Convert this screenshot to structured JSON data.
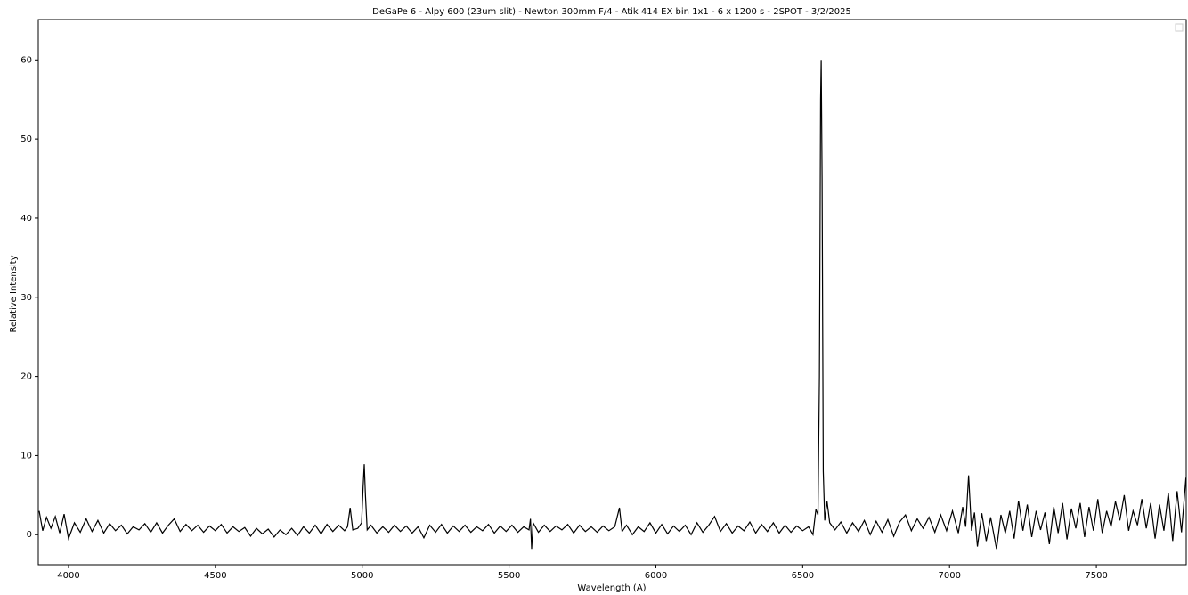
{
  "chart_data": {
    "type": "line",
    "title": "DeGaPe 6 - Alpy 600 (23um slit) - Newton 300mm F/4 - Atik 414 EX bin 1x1 - 6 x 1200 s - 2SPOT - 3/2/2025",
    "x_label": "Wavelength (A)",
    "y_label": "Relative Intensity",
    "color": "#000000",
    "xlim": [
      3897,
      7806
    ],
    "ylim": [
      -3.8,
      65.1
    ],
    "xticks": [
      4000,
      4500,
      5000,
      5500,
      6000,
      6500,
      7000,
      7500
    ],
    "yticks": [
      0,
      10,
      20,
      30,
      40,
      50,
      60
    ],
    "grid": false,
    "x": [
      3900,
      3912,
      3925,
      3940,
      3955,
      3970,
      3985,
      4000,
      4020,
      4040,
      4060,
      4080,
      4100,
      4120,
      4140,
      4160,
      4180,
      4200,
      4220,
      4240,
      4260,
      4280,
      4300,
      4320,
      4340,
      4360,
      4380,
      4400,
      4420,
      4440,
      4460,
      4480,
      4500,
      4520,
      4540,
      4560,
      4580,
      4600,
      4620,
      4640,
      4660,
      4680,
      4700,
      4720,
      4740,
      4760,
      4780,
      4800,
      4820,
      4840,
      4860,
      4880,
      4900,
      4920,
      4940,
      4950,
      4959,
      4968,
      4985,
      4998,
      5003,
      5007,
      5011,
      5017,
      5030,
      5050,
      5070,
      5090,
      5110,
      5130,
      5150,
      5170,
      5190,
      5210,
      5230,
      5250,
      5270,
      5290,
      5310,
      5330,
      5350,
      5370,
      5390,
      5410,
      5430,
      5450,
      5470,
      5490,
      5510,
      5530,
      5550,
      5568,
      5573,
      5577,
      5582,
      5600,
      5620,
      5640,
      5660,
      5680,
      5700,
      5720,
      5740,
      5760,
      5780,
      5800,
      5820,
      5840,
      5860,
      5876,
      5885,
      5900,
      5920,
      5940,
      5960,
      5980,
      6000,
      6020,
      6040,
      6060,
      6080,
      6100,
      6120,
      6140,
      6160,
      6180,
      6200,
      6220,
      6240,
      6260,
      6280,
      6300,
      6320,
      6340,
      6360,
      6380,
      6400,
      6420,
      6440,
      6460,
      6480,
      6500,
      6520,
      6535,
      6545,
      6552,
      6557,
      6561,
      6563,
      6566,
      6570,
      6575,
      6583,
      6592,
      6610,
      6630,
      6650,
      6670,
      6690,
      6710,
      6730,
      6750,
      6770,
      6790,
      6810,
      6830,
      6850,
      6870,
      6890,
      6910,
      6930,
      6950,
      6970,
      6990,
      7010,
      7030,
      7045,
      7055,
      7065,
      7075,
      7085,
      7095,
      7110,
      7125,
      7140,
      7160,
      7175,
      7190,
      7205,
      7220,
      7235,
      7250,
      7265,
      7280,
      7295,
      7310,
      7325,
      7340,
      7355,
      7370,
      7385,
      7400,
      7415,
      7430,
      7445,
      7460,
      7475,
      7490,
      7505,
      7520,
      7535,
      7550,
      7565,
      7580,
      7595,
      7610,
      7625,
      7640,
      7655,
      7670,
      7685,
      7700,
      7715,
      7730,
      7745,
      7760,
      7775,
      7790,
      7805
    ],
    "values": [
      3.0,
      0.5,
      2.2,
      0.8,
      2.3,
      0.2,
      2.6,
      -0.5,
      1.5,
      0.3,
      2.0,
      0.4,
      1.8,
      0.2,
      1.4,
      0.5,
      1.2,
      0.1,
      1.0,
      0.6,
      1.4,
      0.3,
      1.5,
      0.2,
      1.2,
      2.0,
      0.4,
      1.3,
      0.5,
      1.2,
      0.3,
      1.1,
      0.5,
      1.3,
      0.2,
      1.0,
      0.4,
      0.9,
      -0.2,
      0.8,
      0.1,
      0.7,
      -0.3,
      0.6,
      0.0,
      0.8,
      -0.1,
      1.0,
      0.2,
      1.2,
      0.1,
      1.3,
      0.4,
      1.2,
      0.5,
      1.0,
      3.4,
      0.6,
      0.8,
      1.5,
      6.0,
      8.9,
      5.0,
      0.6,
      1.2,
      0.2,
      1.0,
      0.3,
      1.2,
      0.4,
      1.1,
      0.2,
      1.0,
      -0.4,
      1.2,
      0.3,
      1.3,
      0.2,
      1.1,
      0.4,
      1.2,
      0.3,
      1.0,
      0.5,
      1.3,
      0.2,
      1.1,
      0.4,
      1.2,
      0.3,
      1.0,
      0.6,
      2.0,
      -1.8,
      1.5,
      0.3,
      1.2,
      0.4,
      1.1,
      0.6,
      1.3,
      0.2,
      1.2,
      0.4,
      1.0,
      0.3,
      1.1,
      0.5,
      1.0,
      3.4,
      0.4,
      1.2,
      0.0,
      1.0,
      0.4,
      1.5,
      0.2,
      1.3,
      0.1,
      1.1,
      0.4,
      1.2,
      0.0,
      1.5,
      0.3,
      1.2,
      2.3,
      0.4,
      1.4,
      0.2,
      1.1,
      0.5,
      1.6,
      0.2,
      1.3,
      0.4,
      1.5,
      0.2,
      1.2,
      0.3,
      1.1,
      0.5,
      1.0,
      0.0,
      3.2,
      2.5,
      20,
      55,
      60,
      45,
      8,
      1.8,
      4.2,
      1.5,
      0.6,
      1.6,
      0.2,
      1.5,
      0.4,
      1.8,
      0.0,
      1.7,
      0.3,
      1.9,
      -0.2,
      1.6,
      2.5,
      0.5,
      2.0,
      0.8,
      2.2,
      0.3,
      2.5,
      0.5,
      3.0,
      0.2,
      3.5,
      1.0,
      7.5,
      0.5,
      2.8,
      -1.5,
      2.7,
      -0.8,
      2.2,
      -1.8,
      2.5,
      0.2,
      3.0,
      -0.5,
      4.3,
      0.5,
      3.8,
      -0.3,
      3.0,
      0.6,
      2.8,
      -1.2,
      3.5,
      0.2,
      4.0,
      -0.6,
      3.3,
      0.8,
      4.0,
      -0.3,
      3.5,
      0.5,
      4.5,
      0.2,
      3.0,
      1.0,
      4.2,
      1.8,
      5.0,
      0.5,
      3.0,
      1.2,
      4.5,
      0.8,
      4.0,
      -0.5,
      3.8,
      0.5,
      5.3,
      -0.8,
      5.5,
      0.3,
      7.2
    ]
  }
}
